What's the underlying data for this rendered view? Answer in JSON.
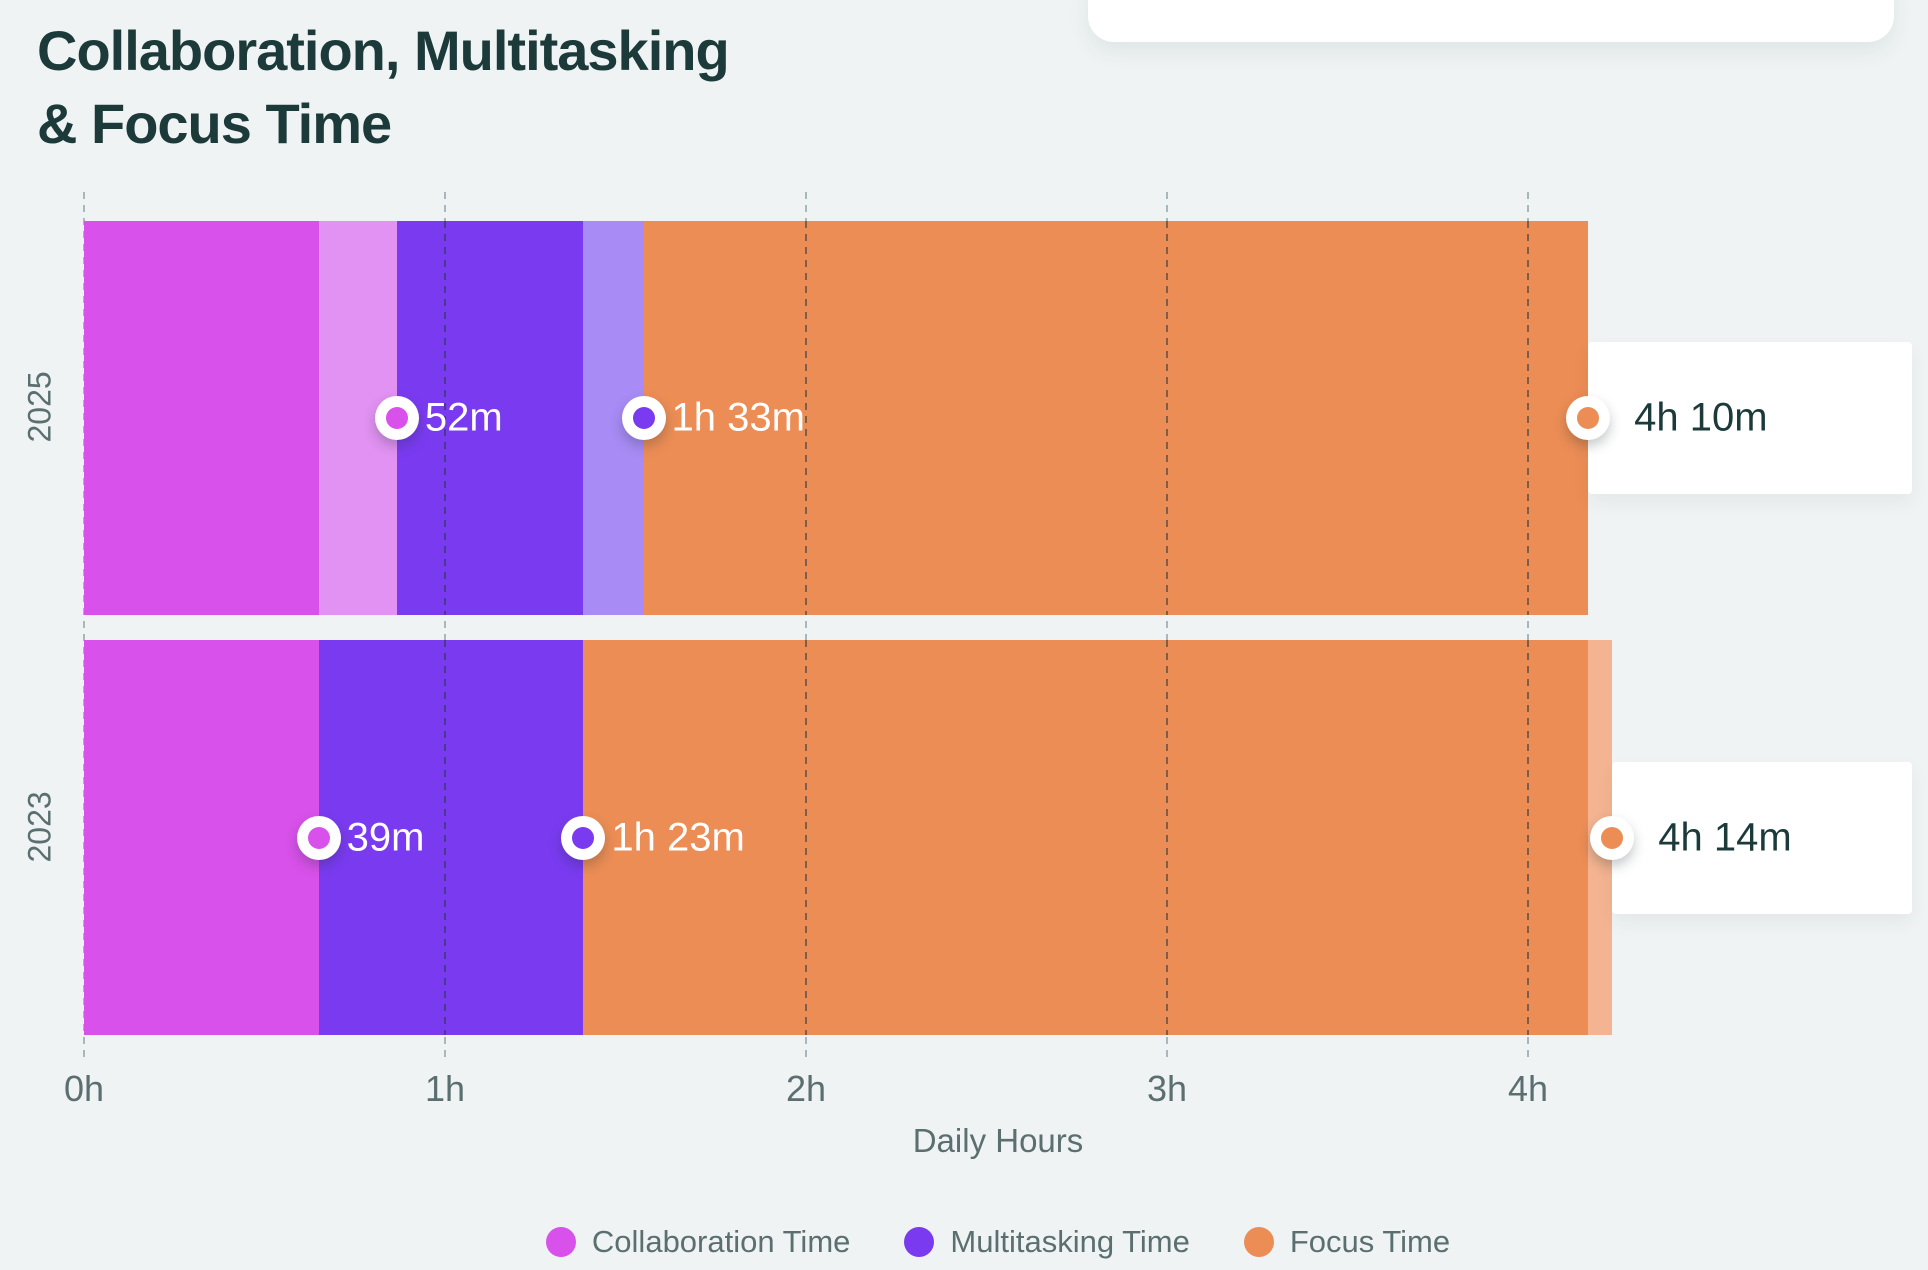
{
  "title": {
    "line1": "Collaboration, Multitasking",
    "line2": "& Focus Time"
  },
  "colors": {
    "background": "#eff3f4",
    "title_text": "#1d3a3a",
    "muted_text": "#5b6f70",
    "chip_background": "#ffffff",
    "collaboration": "#d851ea",
    "collaboration_light": "#e292f2",
    "multitasking": "#7a3bf0",
    "multitasking_light": "#a88bf5",
    "focus": "#ec8d55",
    "focus_light": "#f4b491"
  },
  "chart_data": {
    "type": "bar",
    "orientation": "horizontal_stacked",
    "title": "Collaboration, Multitasking & Focus Time",
    "xlabel": "Daily Hours",
    "x_ticks": [
      {
        "label": "0h",
        "hours": 0
      },
      {
        "label": "1h",
        "hours": 1
      },
      {
        "label": "2h",
        "hours": 2
      },
      {
        "label": "3h",
        "hours": 3
      },
      {
        "label": "4h",
        "hours": 4
      }
    ],
    "grid": "dashed_vertical",
    "legend_position": "bottom_center",
    "legend": [
      {
        "label": "Collaboration Time",
        "series": "collaboration"
      },
      {
        "label": "Multitasking Time",
        "series": "multitasking"
      },
      {
        "label": "Focus Time",
        "series": "focus"
      }
    ],
    "rows": [
      {
        "year": "2025",
        "segments": [
          {
            "series": "collaboration",
            "shade": "solid",
            "from_hours": 0,
            "to_hours": 0.65
          },
          {
            "series": "collaboration",
            "shade": "light",
            "from_hours": 0.65,
            "to_hours": 0.8667
          },
          {
            "series": "multitasking",
            "shade": "solid",
            "from_hours": 0.8667,
            "to_hours": 1.3833
          },
          {
            "series": "multitasking",
            "shade": "light",
            "from_hours": 1.3833,
            "to_hours": 1.55
          },
          {
            "series": "focus",
            "shade": "solid",
            "from_hours": 1.55,
            "to_hours": 4.1667
          }
        ],
        "markers": [
          {
            "series": "collaboration",
            "hours": 0.8667,
            "label": "52m",
            "placement": "on_bar"
          },
          {
            "series": "multitasking",
            "hours": 1.55,
            "label": "1h 33m",
            "placement": "on_bar"
          },
          {
            "series": "focus",
            "hours": 4.1667,
            "label": "4h 10m",
            "placement": "chip"
          }
        ]
      },
      {
        "year": "2023",
        "segments": [
          {
            "series": "collaboration",
            "shade": "solid",
            "from_hours": 0,
            "to_hours": 0.65
          },
          {
            "series": "multitasking",
            "shade": "solid",
            "from_hours": 0.65,
            "to_hours": 1.3833
          },
          {
            "series": "focus",
            "shade": "solid",
            "from_hours": 1.3833,
            "to_hours": 4.1667
          },
          {
            "series": "focus",
            "shade": "light",
            "from_hours": 4.1667,
            "to_hours": 4.2333
          }
        ],
        "markers": [
          {
            "series": "collaboration",
            "hours": 0.65,
            "label": "39m",
            "placement": "on_bar"
          },
          {
            "series": "multitasking",
            "hours": 1.3833,
            "label": "1h 23m",
            "placement": "on_bar"
          },
          {
            "series": "focus",
            "hours": 4.2333,
            "label": "4h 14m",
            "placement": "chip"
          }
        ]
      }
    ]
  }
}
